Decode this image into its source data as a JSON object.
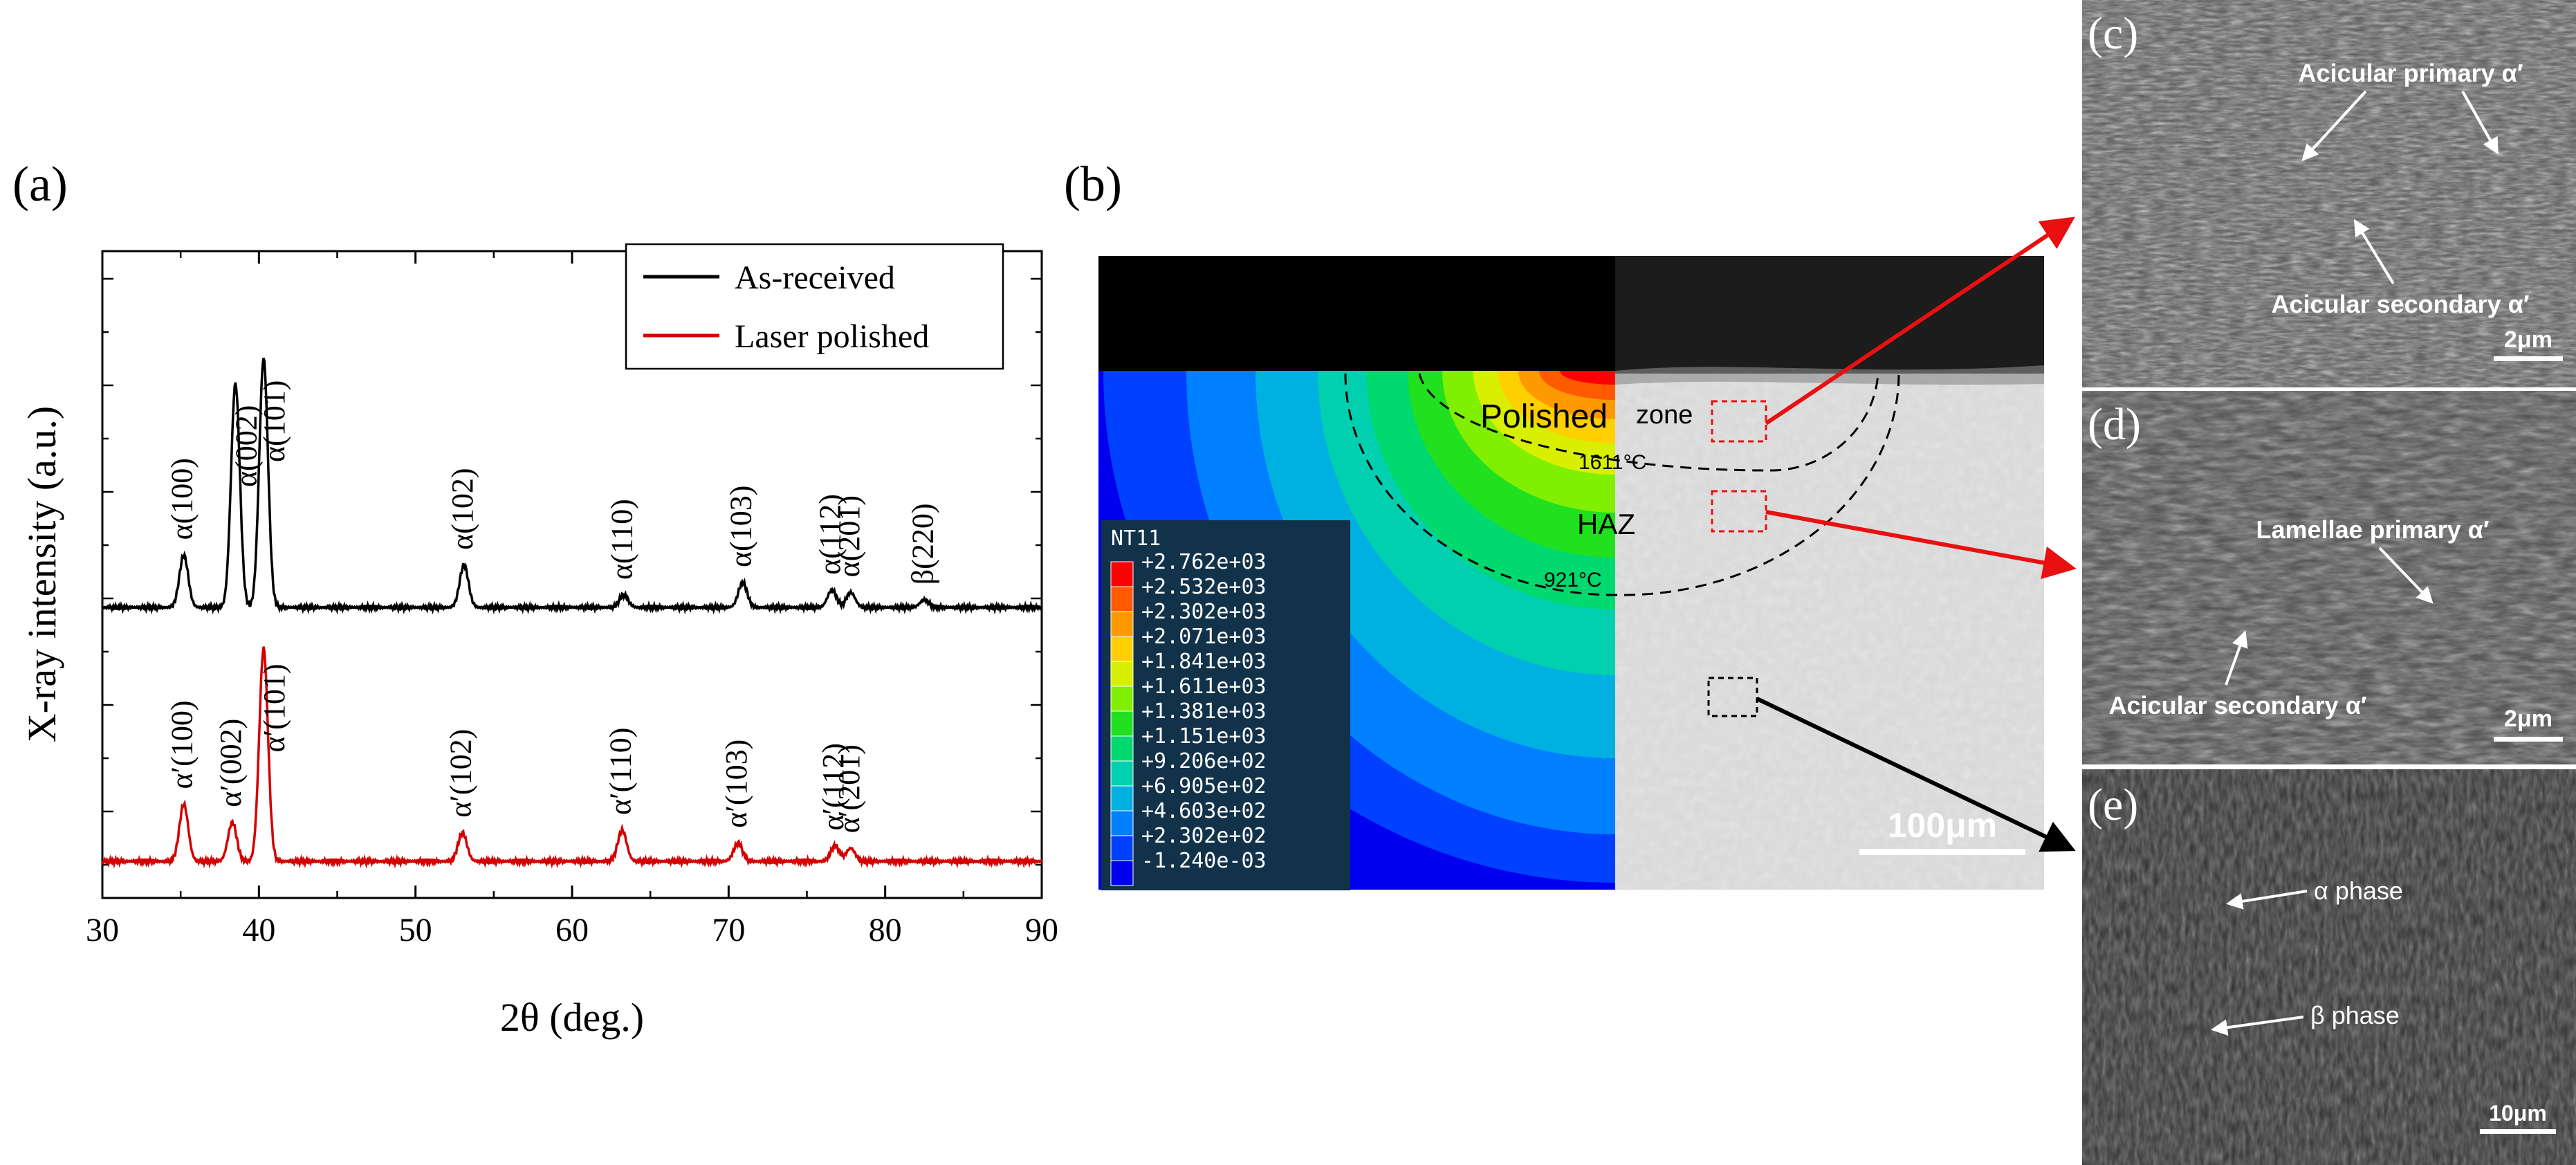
{
  "colors": {
    "series_black": "#000000",
    "series_red": "#d40000",
    "arrow_red": "#e81010",
    "arrow_black": "#000000",
    "box_red": "#e81010"
  },
  "panel_labels": {
    "a": "(a)",
    "b": "(b)",
    "c": "(c)",
    "d": "(d)",
    "e": "(e)"
  },
  "chart_data": {
    "type": "line",
    "title": "",
    "xlabel": "2θ (deg.)",
    "ylabel": "X-ray intensity (a.u.)",
    "xlim": [
      30,
      90
    ],
    "xticks": [
      "30",
      "40",
      "50",
      "60",
      "70",
      "80",
      "90"
    ],
    "yticks_shown": false,
    "legend_position": "top-right",
    "series": [
      {
        "name": "As-received",
        "color": "#000000",
        "offset": 1.0,
        "peaks": [
          {
            "x": 35.2,
            "h": 0.21,
            "label": "α(100)"
          },
          {
            "x": 38.5,
            "h": 0.9,
            "label": "α(002)"
          },
          {
            "x": 40.3,
            "h": 1.0,
            "label": "α(101)"
          },
          {
            "x": 53.1,
            "h": 0.17,
            "label": "α(102)"
          },
          {
            "x": 63.3,
            "h": 0.05,
            "label": "α(110)"
          },
          {
            "x": 70.9,
            "h": 0.1,
            "label": "α(103)"
          },
          {
            "x": 76.6,
            "h": 0.07,
            "label": "α(112)"
          },
          {
            "x": 77.8,
            "h": 0.06,
            "label": "α(201)"
          },
          {
            "x": 82.5,
            "h": 0.03,
            "label": "β(220)"
          }
        ]
      },
      {
        "name": "Laser polished",
        "color": "#d40000",
        "offset": 0.0,
        "peaks": [
          {
            "x": 35.2,
            "h": 0.22,
            "label": "α′(100)"
          },
          {
            "x": 38.3,
            "h": 0.15,
            "label": "α′(002)"
          },
          {
            "x": 40.3,
            "h": 0.82,
            "label": "α′(101)"
          },
          {
            "x": 53.0,
            "h": 0.11,
            "label": "α′(102)"
          },
          {
            "x": 63.2,
            "h": 0.12,
            "label": "α′(110)"
          },
          {
            "x": 70.6,
            "h": 0.07,
            "label": "α′(103)"
          },
          {
            "x": 76.8,
            "h": 0.06,
            "label": "α′(112)"
          },
          {
            "x": 77.8,
            "h": 0.05,
            "label": "α′(201)"
          }
        ]
      }
    ]
  },
  "panel_b": {
    "legend_title": "NT11",
    "legend_values": [
      "+2.762e+03",
      "+2.532e+03",
      "+2.302e+03",
      "+2.071e+03",
      "+1.841e+03",
      "+1.611e+03",
      "+1.381e+03",
      "+1.151e+03",
      "+9.206e+02",
      "+6.905e+02",
      "+4.603e+02",
      "+2.302e+02",
      "-1.240e-03"
    ],
    "legend_colors": [
      "#ff0000",
      "#ff5a00",
      "#ff9900",
      "#ffd000",
      "#d8f000",
      "#80f000",
      "#20e020",
      "#00d870",
      "#00d0b0",
      "#00b0e0",
      "#0080ff",
      "#0040ff",
      "#0000ee"
    ],
    "zone_label_polished": "Polished",
    "zone_label_zone": "zone",
    "zone_label_haz": "HAZ",
    "temp_1": "1611°C",
    "temp_2": "921°C",
    "scale_bar": "100μm"
  },
  "panel_c": {
    "label_primary": "Acicular primary α′",
    "label_secondary": "Acicular secondary α′",
    "scale_bar": "2μm"
  },
  "panel_d": {
    "label_primary": "Lamellae primary α′",
    "label_secondary": "Acicular secondary α′",
    "scale_bar": "2μm"
  },
  "panel_e": {
    "label_alpha": "α phase",
    "label_beta": "β phase",
    "scale_bar": "10μm"
  }
}
